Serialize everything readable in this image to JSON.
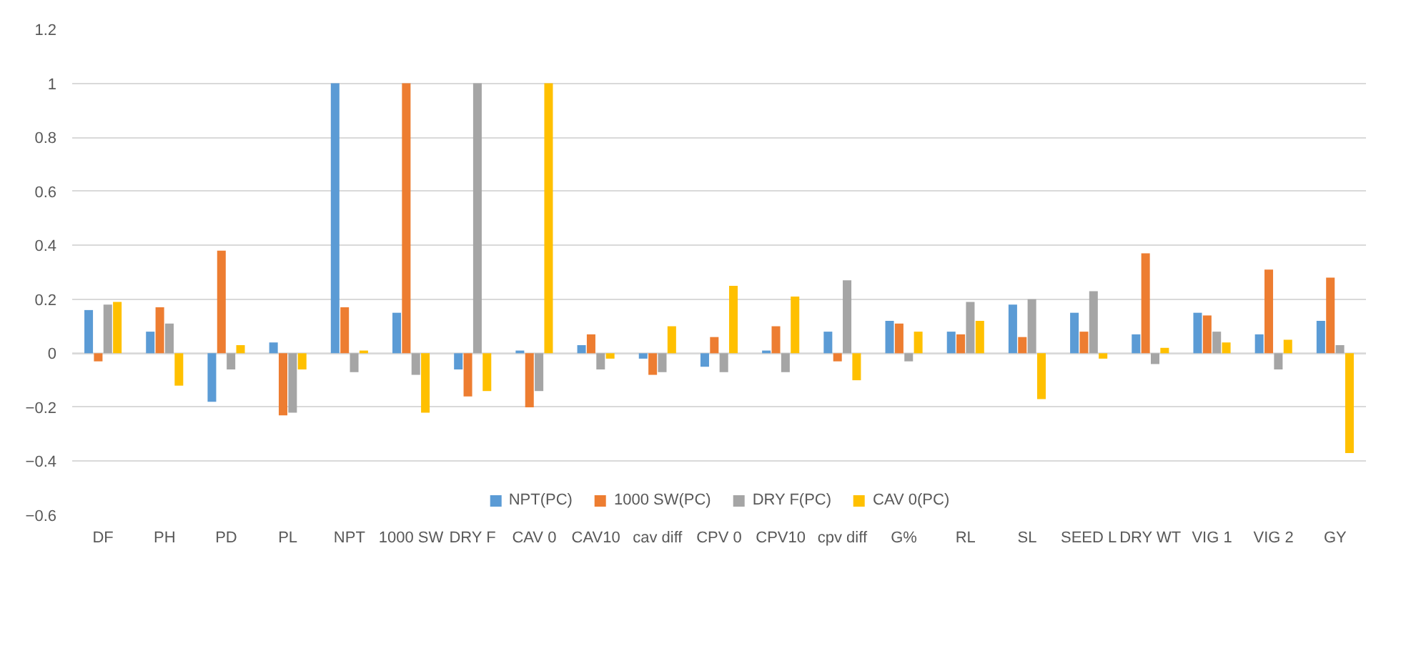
{
  "chart_data": {
    "type": "bar",
    "categories": [
      "DF",
      "PH",
      "PD",
      "PL",
      "NPT",
      "1000 SW",
      "DRY F",
      "CAV 0",
      "CAV10",
      "cav diff",
      "CPV 0",
      "CPV10",
      "cpv diff",
      "G%",
      "RL",
      "SL",
      "SEED L",
      "DRY WT",
      "VIG 1",
      "VIG 2",
      "GY"
    ],
    "series": [
      {
        "name": "NPT(PC)",
        "color": "#5b9bd5",
        "values": [
          0.16,
          0.08,
          -0.18,
          0.04,
          1,
          0.15,
          -0.06,
          0.01,
          0.03,
          -0.02,
          -0.05,
          0.01,
          0.08,
          0.12,
          0.08,
          0.18,
          0.15,
          0.07,
          0.15,
          0.07,
          0.12
        ]
      },
      {
        "name": "1000 SW(PC)",
        "color": "#ed7d31",
        "values": [
          -0.03,
          0.17,
          0.38,
          -0.23,
          0.17,
          1,
          -0.16,
          -0.2,
          0.07,
          -0.08,
          0.06,
          0.1,
          -0.03,
          0.11,
          0.07,
          0.06,
          0.08,
          0.37,
          0.14,
          0.31,
          0.28
        ]
      },
      {
        "name": "DRY F(PC)",
        "color": "#a5a5a5",
        "values": [
          0.18,
          0.11,
          -0.06,
          -0.22,
          -0.07,
          -0.08,
          1,
          -0.14,
          -0.06,
          -0.07,
          -0.07,
          -0.07,
          0.27,
          -0.03,
          0.19,
          0.2,
          0.23,
          -0.04,
          0.08,
          -0.06,
          0.03
        ]
      },
      {
        "name": "CAV 0(PC)",
        "color": "#ffc000",
        "values": [
          0.19,
          -0.12,
          0.03,
          -0.06,
          0.01,
          -0.22,
          -0.14,
          1,
          -0.02,
          0.1,
          0.25,
          0.21,
          -0.1,
          0.08,
          0.12,
          -0.17,
          -0.02,
          0.02,
          0.04,
          0.05,
          -0.37
        ]
      }
    ],
    "ylim": [
      -0.6,
      1.2
    ],
    "yticks": [
      -0.6,
      -0.4,
      -0.2,
      0,
      0.2,
      0.4,
      0.6,
      0.8,
      1,
      1.2
    ],
    "grid": "y",
    "legend": "bottom"
  }
}
